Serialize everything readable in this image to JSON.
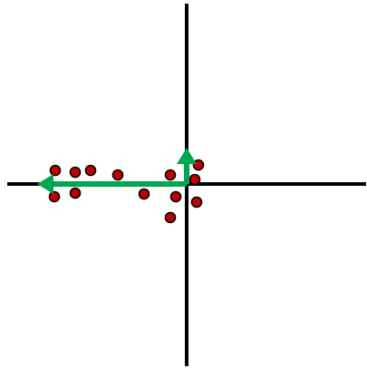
{
  "colors": {
    "background": "#ffffff",
    "axis": "#000000",
    "point_fill": "#c00000",
    "point_stroke": "#000000",
    "vector": "#00a651"
  },
  "points": [
    {
      "x": -145,
      "y": 15
    },
    {
      "x": -123,
      "y": 13
    },
    {
      "x": -106,
      "y": 15
    },
    {
      "x": -76,
      "y": 10
    },
    {
      "x": -18,
      "y": 10
    },
    {
      "x": 13,
      "y": 21
    },
    {
      "x": 9,
      "y": 5
    },
    {
      "x": -146,
      "y": -14
    },
    {
      "x": -123,
      "y": -10
    },
    {
      "x": -47,
      "y": -11
    },
    {
      "x": -12,
      "y": -14
    },
    {
      "x": 11,
      "y": -20
    },
    {
      "x": -18,
      "y": -37
    }
  ],
  "vectors": [
    {
      "dx": -165,
      "dy": 0
    },
    {
      "dx": 0,
      "dy": 40
    }
  ]
}
